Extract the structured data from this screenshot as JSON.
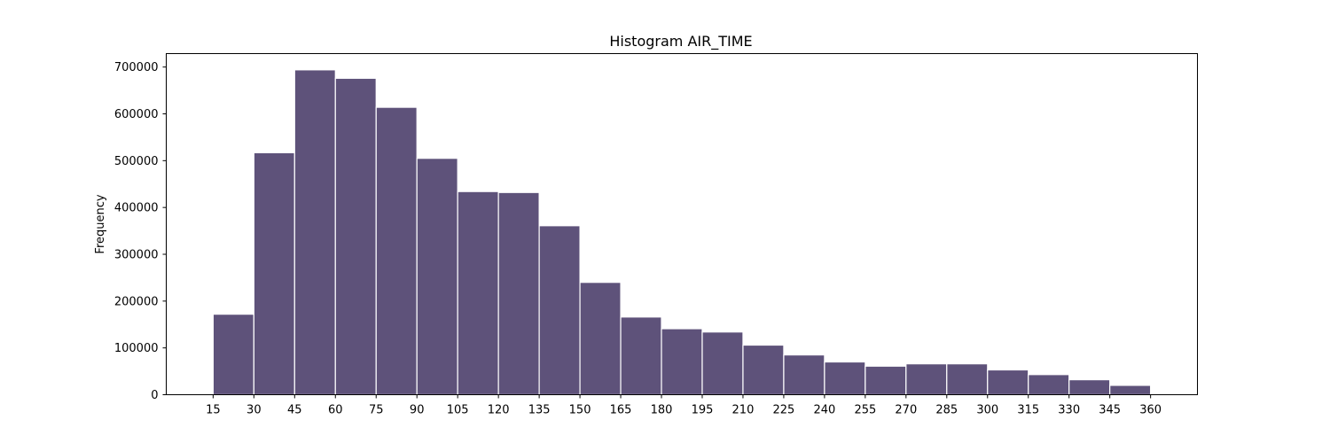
{
  "chart_data": {
    "type": "bar",
    "title": "Histogram AIR_TIME",
    "xlabel": "",
    "ylabel": "Frequency",
    "bin_edges": [
      15,
      30,
      45,
      60,
      75,
      90,
      105,
      120,
      135,
      150,
      165,
      180,
      195,
      210,
      225,
      240,
      255,
      270,
      285,
      300,
      315,
      330,
      345,
      360
    ],
    "values": [
      172000,
      517000,
      694000,
      676000,
      614000,
      505000,
      434000,
      432000,
      361000,
      240000,
      166000,
      141000,
      134000,
      106000,
      85000,
      70000,
      61000,
      66000,
      66000,
      53000,
      43000,
      32000,
      20000
    ],
    "x_ticks": [
      "15",
      "30",
      "45",
      "60",
      "75",
      "90",
      "105",
      "120",
      "135",
      "150",
      "165",
      "180",
      "195",
      "210",
      "225",
      "240",
      "255",
      "270",
      "285",
      "300",
      "315",
      "330",
      "345",
      "360"
    ],
    "y_ticks": [
      0,
      100000,
      200000,
      300000,
      400000,
      500000,
      600000,
      700000
    ],
    "xlim": [
      -2.25,
      377.25
    ],
    "ylim": [
      0,
      728700
    ],
    "bar_color": "#5e527a",
    "edge_color": "#ffffff",
    "grid": false,
    "legend": "none"
  }
}
